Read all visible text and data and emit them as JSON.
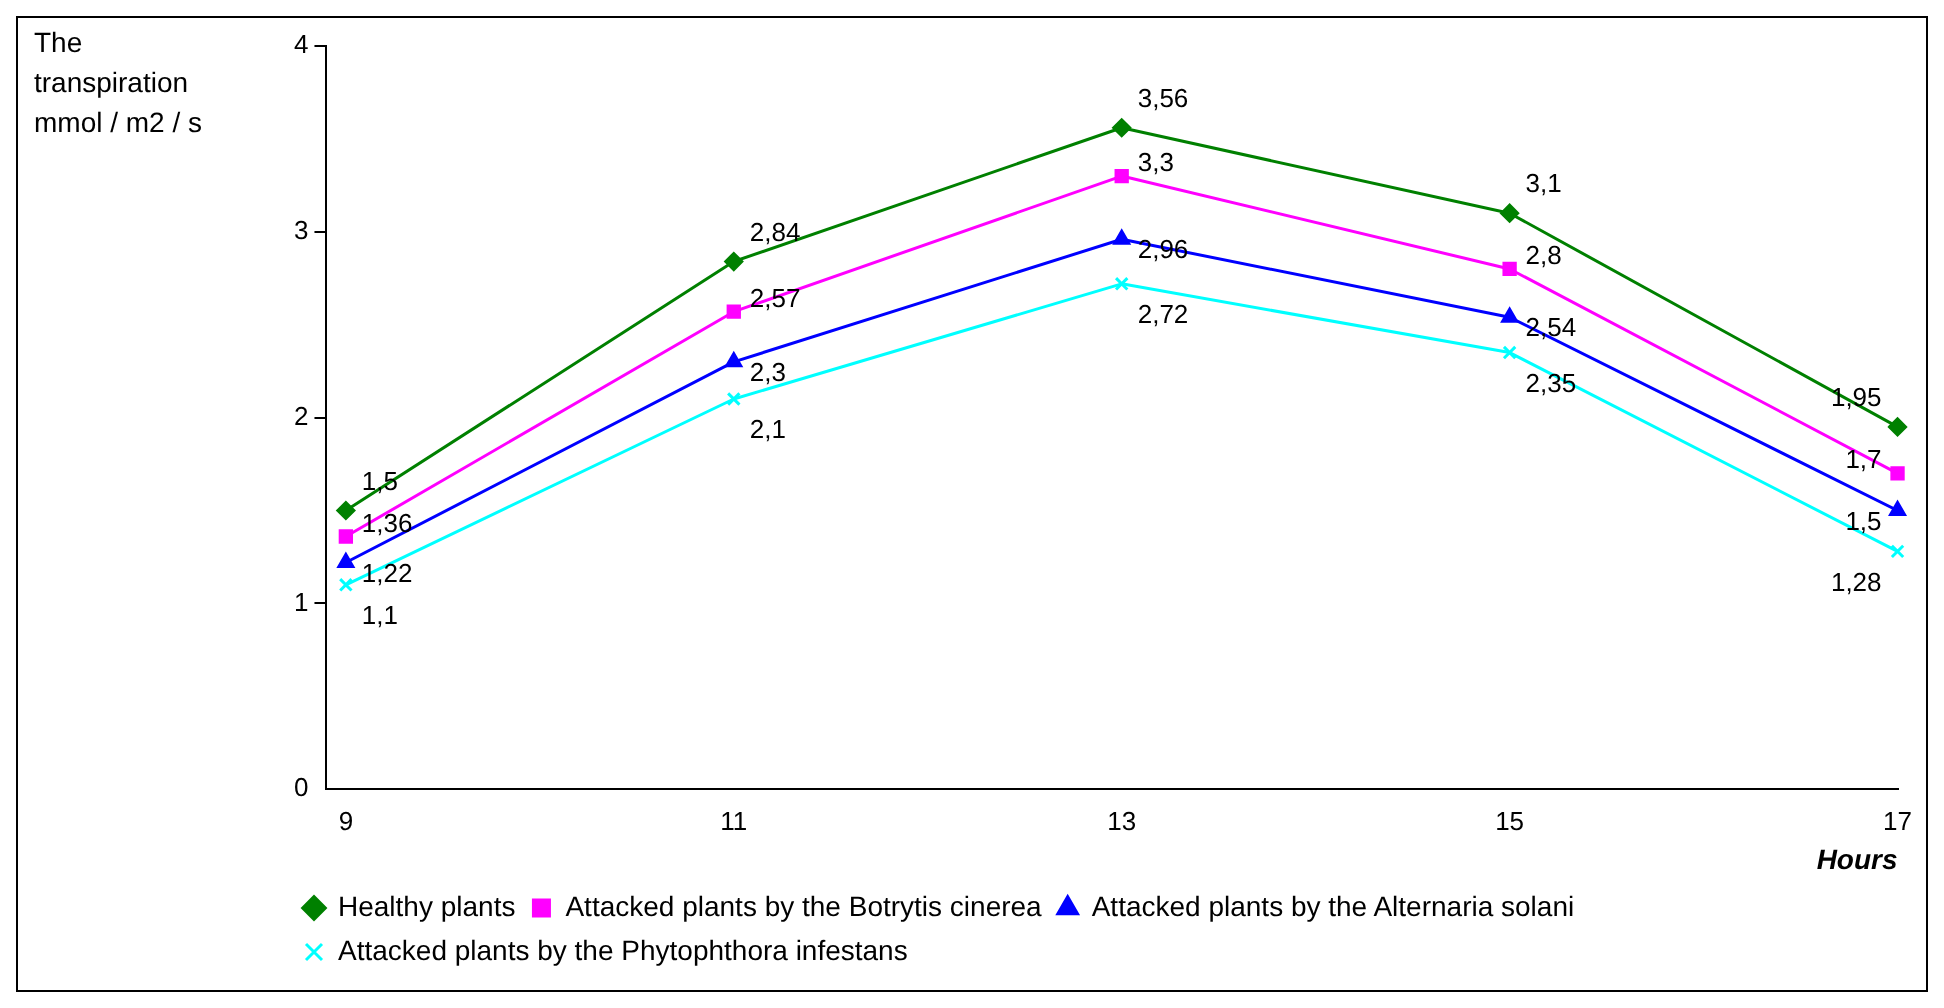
{
  "chart_data": {
    "type": "line",
    "ylabel": "The transpiration mmol / m2 / s",
    "xlabel": "Hours",
    "x": [
      9,
      11,
      13,
      15,
      17
    ],
    "xlim": [
      8.9,
      17
    ],
    "xticks": [
      9,
      11,
      13,
      15,
      17
    ],
    "ylim": [
      0,
      4
    ],
    "yticks": [
      0,
      1,
      2,
      3,
      4
    ],
    "grid": false,
    "legend": "bottom",
    "line_style": "solid",
    "series": [
      {
        "name": "Healthy plants",
        "color": "#008000",
        "marker": "diamond",
        "values": [
          1.5,
          2.84,
          3.56,
          3.1,
          1.95
        ],
        "value_labels": [
          "1,5",
          "2,84",
          "3,56",
          "3,1",
          "1,95"
        ]
      },
      {
        "name": "Attacked plants by the Botrytis cinerea",
        "color": "#ff00ff",
        "marker": "square",
        "values": [
          1.36,
          2.57,
          3.3,
          2.8,
          1.7
        ],
        "value_labels": [
          "1,36",
          "2,57",
          "3,3",
          "2,8",
          "1,7"
        ]
      },
      {
        "name": "Attacked plants by the Alternaria solani",
        "color": "#0000ff",
        "marker": "triangle",
        "values": [
          1.22,
          2.3,
          2.96,
          2.54,
          1.5
        ],
        "value_labels": [
          "1,22",
          "2,3",
          "2,96",
          "2,54",
          "1,5"
        ]
      },
      {
        "name": "Attacked plants by the Phytophthora infestans",
        "color": "#00ffff",
        "marker": "cross",
        "values": [
          1.1,
          2.1,
          2.72,
          2.35,
          1.28
        ],
        "value_labels": [
          "1,1",
          "2,1",
          "2,72",
          "2,35",
          "1,28"
        ]
      }
    ]
  }
}
